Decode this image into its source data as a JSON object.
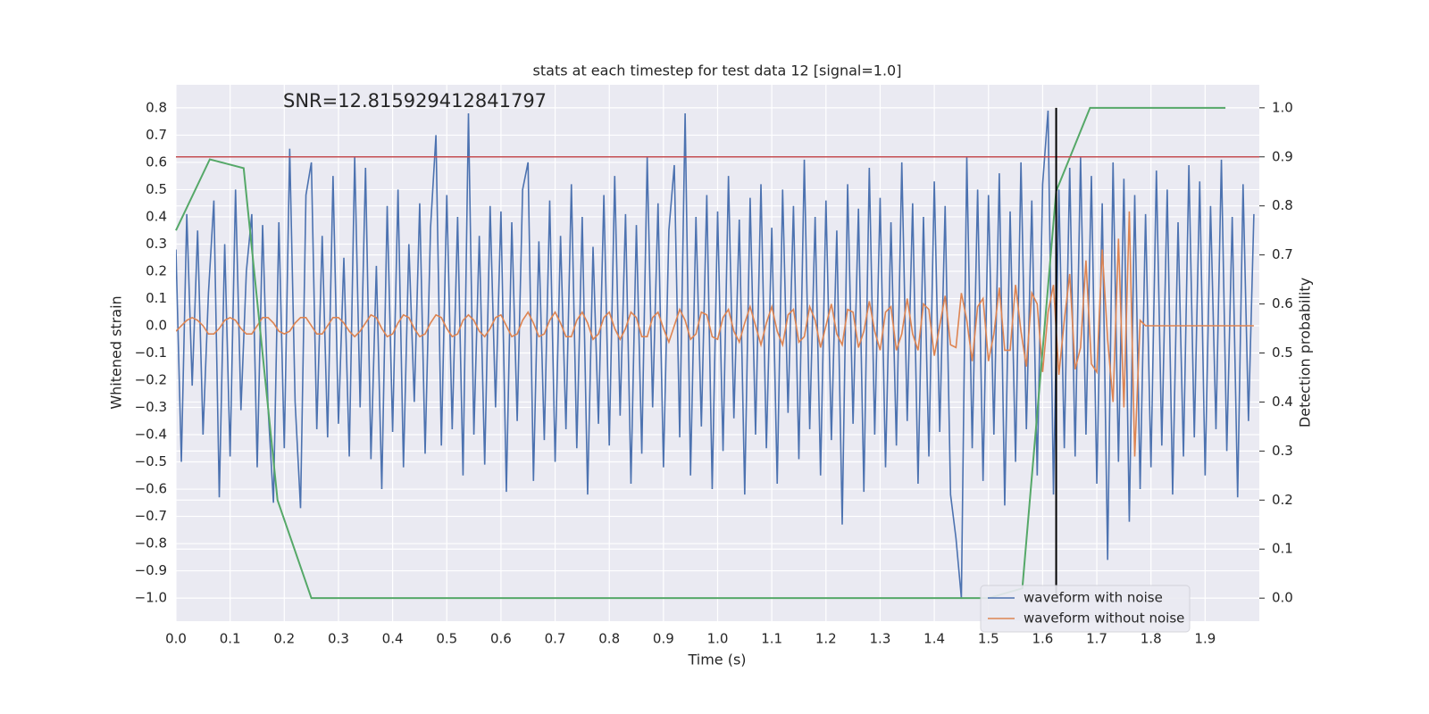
{
  "chart_data": {
    "type": "line",
    "title": "stats at each timestep for test data 12 [signal=1.0]",
    "annotation": "SNR=12.815929412841797",
    "xlabel": "Time (s)",
    "ylabel": "Whitened strain",
    "y2label": "Detection probability",
    "xlim": [
      0,
      2.0
    ],
    "ylim": [
      -1.085,
      0.885
    ],
    "y2lim": [
      -0.047,
      1.047
    ],
    "xticks": [
      {
        "value": 0,
        "label": "0.0"
      },
      0.1,
      0.2,
      0.3,
      0.4,
      0.5,
      0.6,
      0.7,
      0.8,
      0.9,
      {
        "value": 1,
        "label": "1.0"
      },
      1.1,
      1.2,
      1.3,
      1.4,
      1.5,
      1.6,
      1.7,
      1.8,
      1.9
    ],
    "yticks": [
      {
        "value": -1,
        "label": "−1.0"
      },
      {
        "value": -0.9,
        "label": "−0.9"
      },
      {
        "value": -0.8,
        "label": "−0.8"
      },
      {
        "value": -0.7,
        "label": "−0.7"
      },
      {
        "value": -0.6,
        "label": "−0.6"
      },
      {
        "value": -0.5,
        "label": "−0.5"
      },
      {
        "value": -0.4,
        "label": "−0.4"
      },
      {
        "value": -0.3,
        "label": "−0.3"
      },
      {
        "value": -0.2,
        "label": "−0.2"
      },
      {
        "value": -0.1,
        "label": "−0.1"
      },
      {
        "value": 0,
        "label": "0.0"
      },
      0.1,
      0.2,
      0.3,
      0.4,
      0.5,
      0.6,
      0.7,
      0.8
    ],
    "y2ticks": [
      {
        "value": 0,
        "label": "0.0"
      },
      0.1,
      0.2,
      0.3,
      0.4,
      0.5,
      0.6,
      0.7,
      0.8,
      0.9,
      {
        "value": 1,
        "label": "1.0"
      }
    ],
    "grid": true,
    "legend": "lower right",
    "x": [
      0,
      0.01,
      0.02,
      0.03,
      0.04,
      0.05,
      0.06,
      0.07,
      0.08,
      0.09,
      0.1,
      0.11,
      0.12,
      0.13,
      0.14,
      0.15,
      0.16,
      0.17,
      0.18,
      0.19,
      0.2,
      0.21,
      0.22,
      0.23,
      0.24,
      0.25,
      0.26,
      0.27,
      0.28,
      0.29,
      0.3,
      0.31,
      0.32,
      0.33,
      0.34,
      0.35,
      0.36,
      0.37,
      0.38,
      0.39,
      0.4,
      0.41,
      0.42,
      0.43,
      0.44,
      0.45,
      0.46,
      0.47,
      0.48,
      0.49,
      0.5,
      0.51,
      0.52,
      0.53,
      0.54,
      0.55,
      0.56,
      0.57,
      0.58,
      0.59,
      0.6,
      0.61,
      0.62,
      0.63,
      0.64,
      0.65,
      0.66,
      0.67,
      0.68,
      0.69,
      0.7,
      0.71,
      0.72,
      0.73,
      0.74,
      0.75,
      0.76,
      0.77,
      0.78,
      0.79,
      0.8,
      0.81,
      0.82,
      0.83,
      0.84,
      0.85,
      0.86,
      0.87,
      0.88,
      0.89,
      0.9,
      0.91,
      0.92,
      0.93,
      0.94,
      0.95,
      0.96,
      0.97,
      0.98,
      0.99,
      1,
      1.01,
      1.02,
      1.03,
      1.04,
      1.05,
      1.06,
      1.07,
      1.08,
      1.09,
      1.1,
      1.11,
      1.12,
      1.13,
      1.14,
      1.15,
      1.16,
      1.17,
      1.18,
      1.19,
      1.2,
      1.21,
      1.22,
      1.23,
      1.24,
      1.25,
      1.26,
      1.27,
      1.28,
      1.29,
      1.3,
      1.31,
      1.32,
      1.33,
      1.34,
      1.35,
      1.36,
      1.37,
      1.38,
      1.39,
      1.4,
      1.41,
      1.42,
      1.43,
      1.44,
      1.45,
      1.46,
      1.47,
      1.48,
      1.49,
      1.5,
      1.51,
      1.52,
      1.53,
      1.54,
      1.55,
      1.56,
      1.57,
      1.58,
      1.59,
      1.6,
      1.61,
      1.62,
      1.63,
      1.64,
      1.65,
      1.66,
      1.67,
      1.68,
      1.69,
      1.7,
      1.71,
      1.72,
      1.73,
      1.74,
      1.75,
      1.76,
      1.77,
      1.78,
      1.79,
      1.8,
      1.81,
      1.82,
      1.83,
      1.84,
      1.85,
      1.86,
      1.87,
      1.88,
      1.89,
      1.9,
      1.91,
      1.92,
      1.93,
      1.94,
      1.95,
      1.96,
      1.97,
      1.98,
      1.99
    ],
    "series": [
      {
        "name": "waveform with noise",
        "color": "#4c72b0",
        "values": [
          0.28,
          -0.5,
          0.41,
          -0.22,
          0.35,
          -0.4,
          0.12,
          0.46,
          -0.63,
          0.3,
          -0.48,
          0.5,
          -0.31,
          0.2,
          0.41,
          -0.52,
          0.37,
          -0.3,
          -0.65,
          0.38,
          -0.45,
          0.65,
          -0.28,
          -0.67,
          0.48,
          0.6,
          -0.38,
          0.33,
          -0.41,
          0.55,
          -0.36,
          0.25,
          -0.48,
          0.62,
          -0.3,
          0.58,
          -0.49,
          0.22,
          -0.6,
          0.44,
          -0.39,
          0.5,
          -0.52,
          0.3,
          -0.28,
          0.45,
          -0.47,
          0.36,
          0.7,
          -0.44,
          0.48,
          -0.38,
          0.4,
          -0.55,
          0.78,
          -0.4,
          0.33,
          -0.51,
          0.44,
          -0.3,
          0.42,
          -0.61,
          0.38,
          -0.35,
          0.5,
          0.6,
          -0.57,
          0.31,
          -0.42,
          0.46,
          -0.5,
          0.33,
          -0.38,
          0.52,
          -0.45,
          0.4,
          -0.62,
          0.29,
          -0.36,
          0.48,
          -0.44,
          0.55,
          -0.33,
          0.41,
          -0.58,
          0.37,
          -0.47,
          0.62,
          -0.3,
          0.45,
          -0.52,
          0.35,
          0.59,
          -0.41,
          0.78,
          -0.55,
          0.4,
          -0.37,
          0.48,
          -0.6,
          0.42,
          -0.46,
          0.55,
          -0.34,
          0.39,
          -0.62,
          0.47,
          -0.4,
          0.52,
          -0.45,
          0.36,
          -0.58,
          0.5,
          -0.32,
          0.44,
          -0.49,
          0.61,
          -0.38,
          0.4,
          -0.55,
          0.46,
          -0.42,
          0.35,
          -0.73,
          0.52,
          -0.36,
          0.43,
          -0.61,
          0.58,
          -0.4,
          0.47,
          -0.52,
          0.38,
          -0.44,
          0.6,
          -0.35,
          0.45,
          -0.58,
          0.4,
          -0.48,
          0.53,
          -0.39,
          0.44,
          -0.62,
          -0.78,
          -1.0,
          0.62,
          -0.45,
          0.5,
          -0.57,
          0.48,
          -0.4,
          0.56,
          -0.66,
          0.42,
          -0.5,
          0.6,
          -0.38,
          0.46,
          -0.55,
          0.52,
          0.79,
          -0.62,
          0.5,
          -0.45,
          0.58,
          -0.48,
          0.62,
          -0.4,
          0.55,
          -0.58,
          0.45,
          -0.86,
          0.6,
          -0.5,
          0.54,
          -0.72,
          0.48,
          -0.6,
          0.41,
          -0.52,
          0.57,
          -0.44,
          0.5,
          -0.62,
          0.38,
          -0.48,
          0.59,
          -0.41,
          0.53,
          -0.55,
          0.44,
          -0.38,
          0.61,
          -0.46,
          0.4,
          -0.63,
          0.52,
          -0.35,
          0.41
        ]
      },
      {
        "name": "waveform without noise",
        "color": "#dd8452",
        "values": [
          -0.02,
          0.0,
          0.02,
          0.03,
          0.02,
          0.0,
          -0.03,
          -0.03,
          -0.01,
          0.02,
          0.03,
          0.02,
          -0.01,
          -0.03,
          -0.03,
          0.0,
          0.03,
          0.03,
          0.01,
          -0.02,
          -0.03,
          -0.02,
          0.01,
          0.03,
          0.03,
          0.0,
          -0.03,
          -0.03,
          0.0,
          0.03,
          0.03,
          0.01,
          -0.02,
          -0.04,
          -0.02,
          0.01,
          0.04,
          0.03,
          -0.01,
          -0.04,
          -0.03,
          0.01,
          0.04,
          0.03,
          -0.01,
          -0.04,
          -0.03,
          0.01,
          0.04,
          0.03,
          -0.01,
          -0.04,
          -0.03,
          0.02,
          0.04,
          0.02,
          -0.02,
          -0.04,
          -0.01,
          0.03,
          0.04,
          0.0,
          -0.04,
          -0.03,
          0.02,
          0.05,
          0.01,
          -0.04,
          -0.03,
          0.02,
          0.05,
          0.01,
          -0.04,
          -0.04,
          0.02,
          0.05,
          0.01,
          -0.05,
          -0.03,
          0.03,
          0.05,
          -0.01,
          -0.05,
          -0.01,
          0.05,
          0.03,
          -0.04,
          -0.04,
          0.03,
          0.05,
          -0.01,
          -0.06,
          0.0,
          0.06,
          0.02,
          -0.05,
          -0.03,
          0.05,
          0.04,
          -0.04,
          -0.05,
          0.03,
          0.06,
          -0.02,
          -0.06,
          0.01,
          0.07,
          0.0,
          -0.07,
          0.01,
          0.07,
          -0.02,
          -0.07,
          0.04,
          0.06,
          -0.06,
          -0.04,
          0.07,
          0.02,
          -0.08,
          0.0,
          0.08,
          -0.03,
          -0.07,
          0.06,
          0.05,
          -0.08,
          -0.02,
          0.09,
          -0.02,
          -0.09,
          0.05,
          0.07,
          -0.09,
          -0.03,
          0.1,
          -0.03,
          -0.09,
          0.08,
          0.06,
          -0.11,
          0.0,
          0.11,
          -0.07,
          -0.08,
          0.12,
          0.02,
          -0.13,
          0.07,
          0.1,
          -0.13,
          -0.03,
          0.14,
          -0.09,
          -0.09,
          0.15,
          -0.02,
          -0.15,
          0.12,
          0.08,
          -0.17,
          0.05,
          0.15,
          -0.18,
          0.02,
          0.19,
          -0.16,
          -0.08,
          0.24,
          -0.14,
          -0.17,
          0.28,
          -0.05,
          -0.28,
          0.32,
          -0.3,
          0.42,
          -0.48,
          0.02,
          0.0,
          0.0,
          0.0,
          0.0,
          0.0,
          0.0,
          0.0,
          0.0,
          0.0,
          0.0,
          0.0,
          0.0,
          0.0,
          0.0,
          0.0,
          0.0,
          0.0,
          0.0,
          0.0,
          0.0,
          0.0
        ]
      }
    ],
    "probability": {
      "color": "#55a868",
      "axis": "y2",
      "x": [
        0,
        0.0625,
        0.125,
        0.1875,
        0.25,
        0.3125,
        1.4375,
        1.5,
        1.5625,
        1.625,
        1.6875,
        1.9375
      ],
      "values": [
        0.75,
        0.895,
        0.877,
        0.2,
        0.0,
        0.0,
        0.0,
        0.0,
        0.02,
        0.83,
        1.0,
        1.0
      ]
    },
    "threshold": {
      "color": "#c44e52",
      "axis": "y2",
      "value": 0.9
    },
    "marker": {
      "color": "#000000",
      "x": 1.625,
      "axis": "y2",
      "range": [
        0,
        1
      ]
    }
  }
}
